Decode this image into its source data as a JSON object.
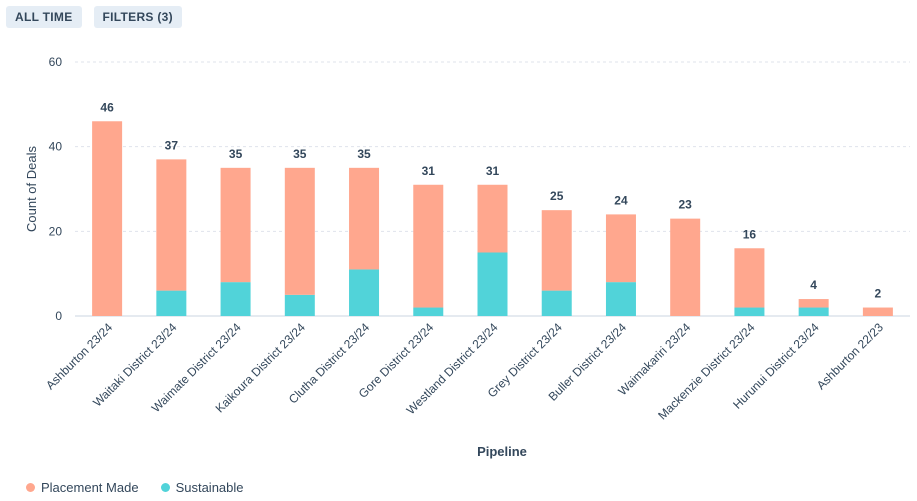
{
  "toolbar": {
    "all_time_label": "ALL TIME",
    "filters_label": "FILTERS (3)"
  },
  "chart_data": {
    "type": "bar",
    "stacked": true,
    "categories": [
      "Ashburton 23/24",
      "Waitaki District 23/24",
      "Waimate District 23/24",
      "Kaikoura District 23/24",
      "Clutha District 23/24",
      "Gore District 23/24",
      "Westland District 23/24",
      "Grey District 23/24",
      "Buller District 23/24",
      "Waimakariri 23/24",
      "Mackenzie District 23/24",
      "Hurunui District 23/24",
      "Ashburton 22/23"
    ],
    "series": [
      {
        "name": "Sustainable",
        "color": "#51d3d9",
        "values": [
          0,
          6,
          8,
          5,
          11,
          2,
          15,
          6,
          8,
          0,
          2,
          2,
          0
        ]
      },
      {
        "name": "Placement Made",
        "color": "#ffa78e",
        "values": [
          46,
          31,
          27,
          30,
          24,
          29,
          16,
          19,
          16,
          23,
          14,
          2,
          2
        ]
      }
    ],
    "totals": [
      46,
      37,
      35,
      35,
      35,
      31,
      31,
      25,
      24,
      23,
      16,
      4,
      2
    ],
    "xlabel": "Pipeline",
    "ylabel": "Count of Deals",
    "ylim": [
      0,
      60
    ],
    "yticks": [
      0,
      20,
      40,
      60
    ],
    "grid": true,
    "legend": [
      "Placement Made",
      "Sustainable"
    ],
    "legend_position": "bottom-left"
  }
}
